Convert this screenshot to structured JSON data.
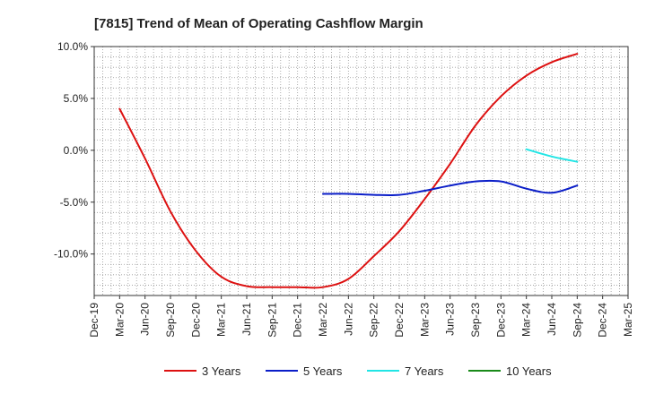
{
  "chart_data": {
    "type": "line",
    "title": "[7815]  Trend of Mean of Operating Cashflow Margin",
    "xlabel": "",
    "ylabel": "",
    "x_ticks": [
      "Dec-19",
      "Mar-20",
      "Jun-20",
      "Sep-20",
      "Dec-20",
      "Mar-21",
      "Jun-21",
      "Sep-21",
      "Dec-21",
      "Mar-22",
      "Jun-22",
      "Sep-22",
      "Dec-22",
      "Mar-23",
      "Jun-23",
      "Sep-23",
      "Dec-23",
      "Mar-24",
      "Jun-24",
      "Sep-24",
      "Dec-24",
      "Mar-25"
    ],
    "y_ticks": [
      {
        "value": 10,
        "label": "10.0%"
      },
      {
        "value": 5,
        "label": "5.0%"
      },
      {
        "value": 0,
        "label": "0.0%"
      },
      {
        "value": -5,
        "label": "-5.0%"
      },
      {
        "value": -10,
        "label": "-10.0%"
      }
    ],
    "ylim": [
      -14,
      10
    ],
    "grid": true,
    "legend_position": "bottom",
    "series": [
      {
        "name": "3 Years",
        "color": "#dd1111",
        "x": [
          "Mar-20",
          "Jun-20",
          "Sep-20",
          "Dec-20",
          "Mar-21",
          "Jun-21",
          "Sep-21",
          "Dec-21",
          "Mar-22",
          "Jun-22",
          "Sep-22",
          "Dec-22",
          "Mar-23",
          "Jun-23",
          "Sep-23",
          "Dec-23",
          "Mar-24",
          "Jun-24",
          "Sep-24"
        ],
        "values": [
          4.0,
          -0.8,
          -5.9,
          -9.7,
          -12.2,
          -13.1,
          -13.2,
          -13.2,
          -13.2,
          -12.4,
          -10.2,
          -7.8,
          -4.7,
          -1.3,
          2.4,
          5.2,
          7.2,
          8.5,
          9.3
        ]
      },
      {
        "name": "5 Years",
        "color": "#0b1ec8",
        "x": [
          "Mar-22",
          "Jun-22",
          "Sep-22",
          "Dec-22",
          "Mar-23",
          "Jun-23",
          "Sep-23",
          "Dec-23",
          "Mar-24",
          "Jun-24",
          "Sep-24"
        ],
        "values": [
          -4.2,
          -4.2,
          -4.3,
          -4.3,
          -3.9,
          -3.4,
          -3.0,
          -3.0,
          -3.7,
          -4.1,
          -3.4
        ]
      },
      {
        "name": "7 Years",
        "color": "#22e5e5",
        "x": [
          "Mar-24",
          "Jun-24",
          "Sep-24"
        ],
        "values": [
          0.1,
          -0.6,
          -1.1
        ]
      },
      {
        "name": "10 Years",
        "color": "#1a8a1a",
        "x": [],
        "values": []
      }
    ]
  }
}
